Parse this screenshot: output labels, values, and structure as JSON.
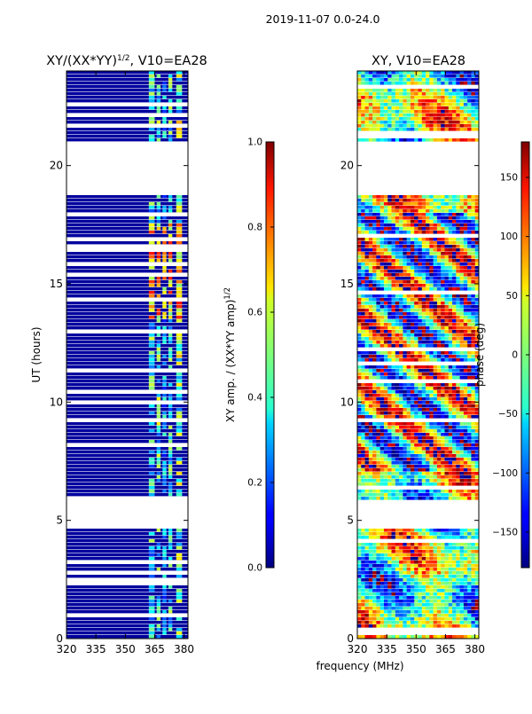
{
  "figure_title": "2019-11-07 0.0-24.0",
  "chart_data": [
    {
      "type": "heatmap",
      "title_main": "XY/(XX*YY)",
      "title_exp": "1/2",
      "title_rest": ", V10=EA28",
      "xlabel": "",
      "ylabel": "UT (hours)",
      "xlim": [
        320,
        382
      ],
      "ylim": [
        0,
        24
      ],
      "xticks": [
        320,
        335,
        350,
        365,
        380
      ],
      "yticks": [
        0,
        5,
        10,
        15,
        20
      ],
      "colormap": "jet",
      "background_value": 0.03,
      "flagged_bands_hours": [
        [
          18.8,
          21
        ],
        [
          4.7,
          5.9
        ]
      ],
      "rfi_channels_mhz": [
        [
          362,
          365,
          0.45
        ],
        [
          366,
          368,
          0.5
        ],
        [
          369,
          371,
          0.35
        ],
        [
          372,
          374,
          0.45
        ],
        [
          376,
          379,
          0.55
        ]
      ],
      "bright_patch": {
        "hours": [
          13.5,
          17.5
        ],
        "mhz": [
          362,
          380
        ],
        "value": 0.8
      },
      "colorbar": {
        "label": "XY amp. / (XX*YY amp)",
        "label_exp": "1/2",
        "range": [
          0.0,
          1.0
        ],
        "ticks": [
          0.0,
          0.2,
          0.4,
          0.6,
          0.8,
          1.0
        ]
      }
    },
    {
      "type": "heatmap",
      "title": "XY, V10=EA28",
      "xlabel": "frequency (MHz)",
      "ylabel": "",
      "xlim": [
        320,
        382
      ],
      "ylim": [
        0,
        24
      ],
      "xticks": [
        320,
        335,
        350,
        365,
        380
      ],
      "yticks": [
        0,
        5,
        10,
        15,
        20
      ],
      "colormap": "jet",
      "flagged_bands_hours": [
        [
          18.8,
          21
        ],
        [
          4.7,
          5.9
        ]
      ],
      "colorbar": {
        "label": "phase (deg)",
        "range": [
          -180,
          180
        ],
        "ticks": [
          -150,
          -100,
          -50,
          0,
          50,
          100,
          150
        ]
      }
    }
  ]
}
